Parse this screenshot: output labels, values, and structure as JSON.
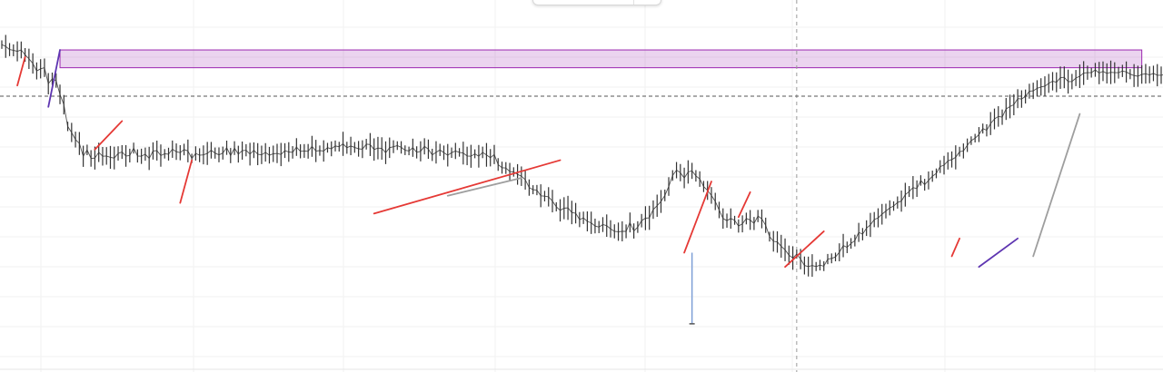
{
  "chart_data": {
    "type": "line",
    "title": "",
    "xlabel": "",
    "ylabel": "",
    "ylim": [
      0,
      100
    ],
    "grid": true,
    "legend": "none",
    "x_count": 300,
    "series": [
      {
        "color": "#333333",
        "anchors_x": [
          0,
          5,
          10,
          15,
          20,
          28,
          40,
          55,
          75,
          90,
          110,
          130,
          150,
          170,
          185,
          196,
          205,
          212,
          222,
          240,
          258,
          280,
          300
        ],
        "anchors_y": [
          90,
          85,
          80,
          62,
          57,
          58,
          59,
          59,
          59,
          61,
          58,
          50,
          43,
          39,
          55,
          49,
          38,
          42,
          28,
          35,
          50,
          75,
          82
        ],
        "values": [
          89.5,
          89.0,
          88.1,
          87.9,
          87.6,
          88.0,
          86.6,
          85.5,
          84.2,
          82.1,
          82.7,
          83.0,
          78.5,
          79.9,
          79.4,
          75.5,
          72.6,
          66.5,
          64.8,
          62.8,
          61.7,
          58.1,
          59.9,
          57.5,
          57.6,
          59.2,
          58.1,
          58.2,
          57.8,
          57.6,
          58.9,
          59.3,
          58.2,
          58.3,
          60.4,
          58.2,
          58.1,
          58.7,
          57.5,
          59.6,
          59.7,
          58.3,
          58.8,
          58.7,
          60.1,
          59.4,
          59.1,
          60.0,
          59.6,
          57.5,
          58.9,
          58.4,
          58.5,
          58.9,
          59.8,
          59.0,
          58.5,
          59.0,
          60.5,
          58.3,
          60.4,
          58.7,
          59.7,
          59.8,
          58.7,
          59.8,
          58.7,
          58.5,
          59.2,
          58.4,
          58.8,
          58.9,
          58.6,
          59.7,
          59.3,
          59.2,
          60.7,
          59.5,
          59.6,
          59.5,
          60.9,
          59.6,
          59.7,
          59.6,
          60.5,
          60.2,
          61.0,
          60.8,
          61.6,
          60.5,
          61.0,
          60.6,
          60.2,
          60.1,
          61.5,
          61.4,
          60.0,
          60.4,
          60.3,
          59.1,
          60.5,
          60.8,
          61.1,
          60.6,
          59.8,
          59.6,
          60.5,
          59.2,
          59.5,
          60.9,
          60.1,
          58.5,
          59.2,
          59.9,
          59.1,
          58.4,
          59.1,
          59.6,
          59.2,
          59.0,
          58.2,
          58.1,
          58.8,
          58.1,
          59.2,
          58.5,
          57.7,
          58.6,
          55.8,
          54.9,
          54.8,
          53.8,
          53.7,
          53.0,
          52.5,
          51.5,
          49.3,
          48.7,
          48.6,
          47.0,
          46.9,
          46.7,
          45.5,
          43.9,
          42.9,
          43.5,
          43.6,
          42.3,
          42.1,
          40.3,
          40.8,
          39.8,
          39.4,
          38.5,
          38.2,
          38.9,
          38.6,
          37.7,
          37.0,
          36.9,
          37.0,
          37.0,
          39.5,
          37.1,
          38.2,
          40.0,
          40.7,
          40.8,
          43.1,
          44.2,
          45.4,
          47.1,
          49.6,
          52.7,
          54.2,
          53.5,
          52.0,
          53.7,
          54.0,
          52.6,
          51.7,
          49.6,
          48.5,
          47.1,
          45.4,
          43.0,
          40.6,
          40.0,
          40.6,
          40.1,
          38.5,
          39.1,
          40.6,
          40.2,
          39.2,
          41.3,
          40.5,
          38.7,
          35.5,
          34.2,
          34.0,
          32.8,
          31.8,
          30.3,
          29.5,
          30.6,
          29.2,
          27.4,
          27.1,
          27.4,
          27.1,
          27.5,
          27.2,
          29.2,
          29.4,
          29.8,
          31.1,
          33.0,
          32.5,
          33.6,
          34.4,
          36.7,
          36.2,
          37.9,
          38.8,
          40.3,
          40.8,
          41.8,
          42.7,
          43.6,
          44.1,
          45.1,
          45.5,
          47.3,
          48.2,
          49.3,
          49.0,
          51.3,
          50.1,
          51.3,
          52.5,
          53.3,
          55.2,
          55.6,
          56.8,
          57.2,
          57.8,
          59.4,
          59.6,
          61.2,
          62.5,
          63.2,
          64.2,
          65.9,
          65.4,
          67.3,
          68.6,
          69.3,
          69.1,
          71.4,
          72.1,
          72.6,
          74.3,
          74.2,
          74.9,
          76.4,
          76.5,
          77.2,
          77.6,
          77.8,
          78.6,
          79.2,
          78.9,
          80.2,
          80.3,
          79.1,
          79.1,
          80.1,
          80.6,
          81.5,
          81.6,
          81.6,
          82.4,
          81.5,
          82.0,
          81.4,
          81.7,
          81.6,
          81.6,
          82.1,
          81.8,
          81.2,
          80.8,
          80.6,
          81.1,
          81.3,
          81.0,
          81.4,
          80.9,
          80.9,
          81.1,
          81.0,
          81.8
        ]
      }
    ],
    "drawings": {
      "resistance_zone": {
        "from_x": 15,
        "to_x": 294,
        "y_low": 83,
        "y_high": 88,
        "color": "#9c27b0"
      },
      "current_price_level": {
        "y": 75,
        "style": "dashed",
        "color": "#555555"
      },
      "crosshair_vertical_x": 205,
      "trend_segments": [
        {
          "x1": 4,
          "y1": 78,
          "x2": 6,
          "y2": 86,
          "color": "#e53935"
        },
        {
          "x1": 12,
          "y1": 72,
          "x2": 15,
          "y2": 88,
          "color": "#5e35b1"
        },
        {
          "x1": 24,
          "y1": 60,
          "x2": 31,
          "y2": 68,
          "color": "#e53935"
        },
        {
          "x1": 46,
          "y1": 45,
          "x2": 49,
          "y2": 57,
          "color": "#e53935"
        },
        {
          "x1": 96,
          "y1": 42,
          "x2": 144,
          "y2": 57,
          "color": "#e53935"
        },
        {
          "x1": 115,
          "y1": 47,
          "x2": 134,
          "y2": 52,
          "color": "#9e9e9e"
        },
        {
          "x1": 176,
          "y1": 31,
          "x2": 183,
          "y2": 51,
          "color": "#e53935"
        },
        {
          "x1": 190,
          "y1": 41,
          "x2": 193,
          "y2": 48,
          "color": "#e53935"
        },
        {
          "x1": 202,
          "y1": 27,
          "x2": 212,
          "y2": 37,
          "color": "#e53935"
        },
        {
          "x1": 245,
          "y1": 30,
          "x2": 247,
          "y2": 35,
          "color": "#e53935"
        },
        {
          "x1": 252,
          "y1": 27,
          "x2": 262,
          "y2": 35,
          "color": "#5e35b1"
        },
        {
          "x1": 266,
          "y1": 30,
          "x2": 278,
          "y2": 70,
          "color": "#9e9e9e"
        }
      ],
      "spike_marker": {
        "x": 178,
        "y_top": 31,
        "y_bottom": 11,
        "color": "#7e9fd6"
      }
    }
  }
}
